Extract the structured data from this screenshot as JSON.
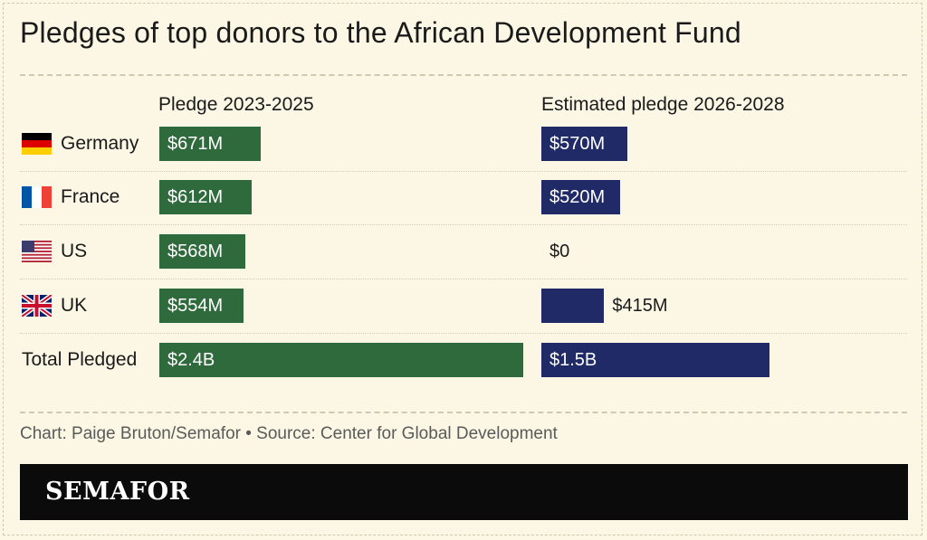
{
  "title": "Pledges of top donors to the African Development Fund",
  "credit": "Chart: Paige Bruton/Semafor • Source: Center for Global Development",
  "logo": "SEMAFOR",
  "colors": {
    "pledge_2023_2025": "#2f6a3c",
    "estimated_2026_2028": "#1f2a66",
    "background": "#fbf7e4"
  },
  "chart_data": {
    "type": "bar",
    "orientation": "horizontal",
    "categories": [
      "Germany",
      "France",
      "US",
      "UK",
      "Total Pledged"
    ],
    "flags": [
      "germany-flag-icon",
      "france-flag-icon",
      "us-flag-icon",
      "uk-flag-icon",
      null
    ],
    "series": [
      {
        "name": "Pledge 2023-2025",
        "values": [
          671,
          612,
          568,
          554,
          2405
        ],
        "labels": [
          "$671M",
          "$612M",
          "$568M",
          "$554M",
          "$2.4B"
        ],
        "unit": "$M"
      },
      {
        "name": "Estimated pledge 2026-2028",
        "values": [
          570,
          520,
          0,
          415,
          1505
        ],
        "labels": [
          "$570M",
          "$520M",
          "$0",
          "$415M",
          "$1.5B"
        ],
        "unit": "$M"
      }
    ],
    "grid": false,
    "legend": "column-headers"
  }
}
